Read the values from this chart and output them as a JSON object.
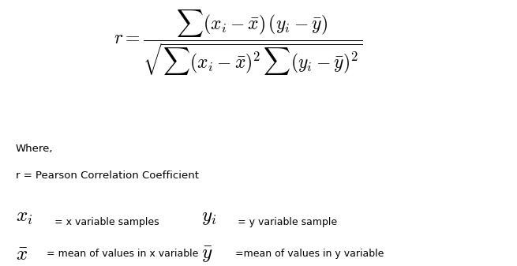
{
  "bg_color": "#ffffff",
  "text_color": "#000000",
  "formula_fontsize": 17,
  "label_fontsize": 9,
  "symbol_fontsize": 18,
  "where_text": "Where,",
  "r_def": "r = Pearson Correlation Coefficient",
  "xi_label": "= x variable samples",
  "yi_label": "= y variable sample",
  "xbar_label": "= mean of values in x variable",
  "ybar_label": "=mean of values in y variable"
}
